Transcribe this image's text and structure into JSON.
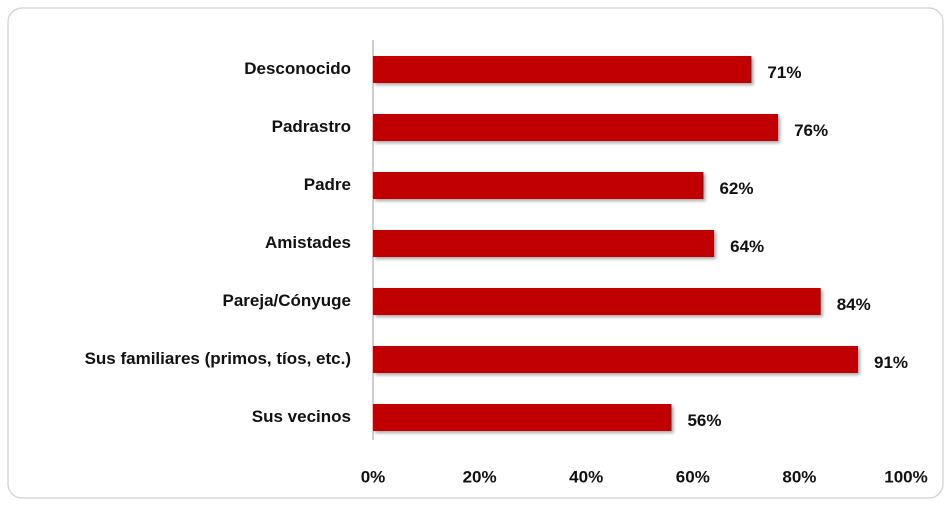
{
  "chart_data": {
    "type": "bar",
    "orientation": "horizontal",
    "categories": [
      "Desconocido",
      "Padrastro",
      "Padre",
      "Amistades",
      "Pareja/Cónyuge",
      "Sus familiares (primos, tíos, etc.)",
      "Sus vecinos"
    ],
    "values": [
      71,
      76,
      62,
      64,
      84,
      91,
      56
    ],
    "value_labels": [
      "71%",
      "76%",
      "62%",
      "64%",
      "84%",
      "91%",
      "56%"
    ],
    "color": "#c00000",
    "xlim": [
      0,
      100
    ],
    "xticks": [
      {
        "value": 0,
        "label": "0%"
      },
      {
        "value": 20,
        "label": "20%"
      },
      {
        "value": 40,
        "label": "40%"
      },
      {
        "value": 60,
        "label": "60%"
      },
      {
        "value": 80,
        "label": "80%"
      },
      {
        "value": 100,
        "label": "100%"
      }
    ],
    "grid": false
  }
}
